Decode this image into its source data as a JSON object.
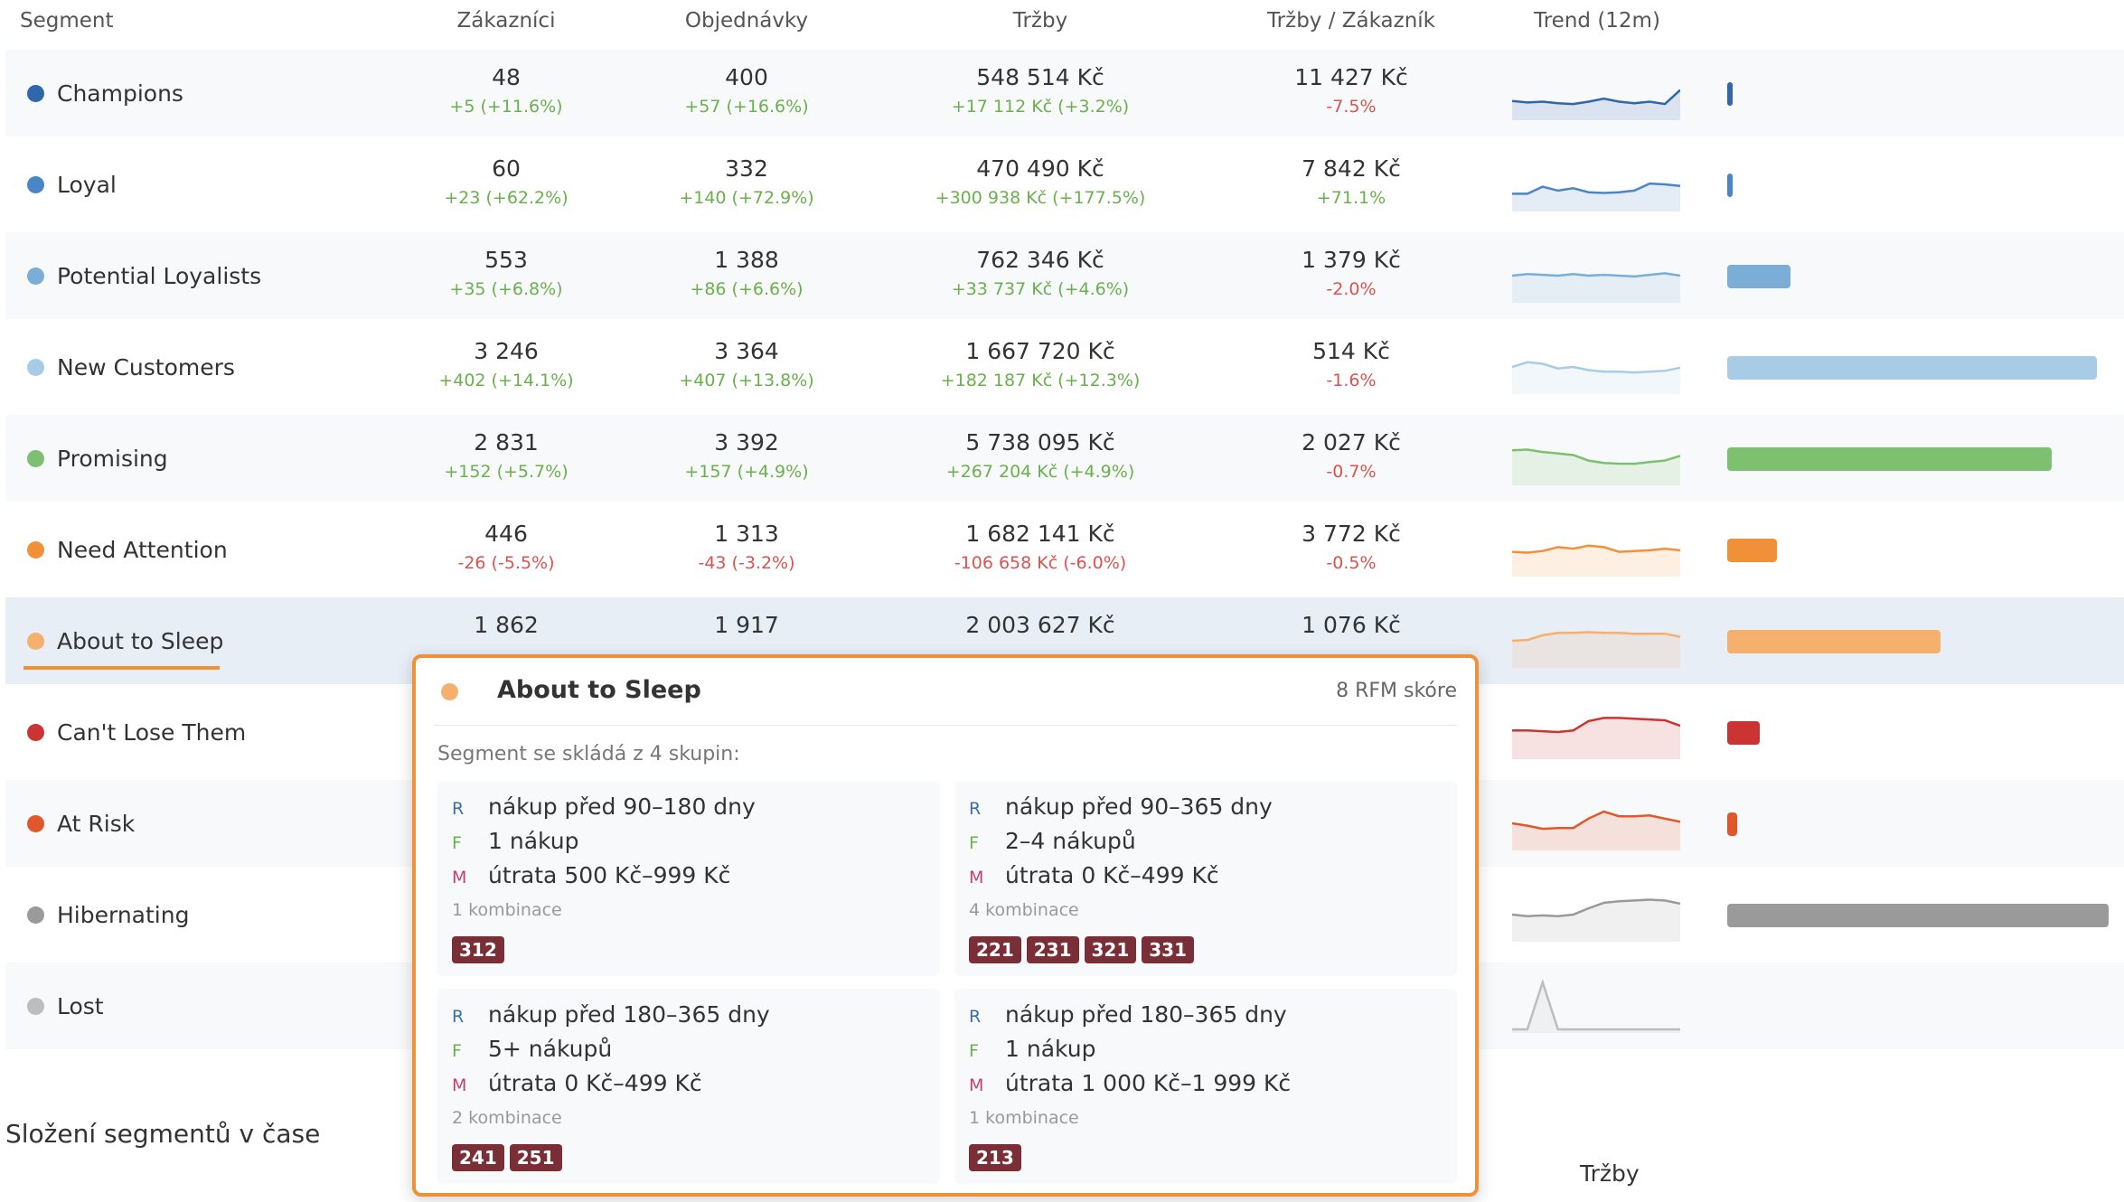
{
  "columns": [
    "Segment",
    "Zákazníci",
    "Objednávky",
    "Tržby",
    "Tržby / Zákazník",
    "Trend (12m)"
  ],
  "rows": [
    {
      "name": "Champions",
      "color": "#2f67ad",
      "customers": "48",
      "customers_delta": "+5 (+11.6%)",
      "customers_dir": "pos",
      "orders": "400",
      "orders_delta": "+57 (+16.6%)",
      "orders_dir": "pos",
      "revenue": "548 514 Kč",
      "revenue_delta": "+17 112 Kč (+3.2%)",
      "revenue_dir": "pos",
      "rpc": "11 427 Kč",
      "rpc_delta": "-7.5%",
      "rpc_dir": "neg",
      "trend": [
        20,
        18,
        19,
        17,
        16,
        19,
        23,
        19,
        17,
        19,
        16,
        34
      ],
      "share": 0.012
    },
    {
      "name": "Loyal",
      "color": "#4a86c5",
      "customers": "60",
      "customers_delta": "+23 (+62.2%)",
      "customers_dir": "pos",
      "orders": "332",
      "orders_delta": "+140 (+72.9%)",
      "orders_dir": "pos",
      "revenue": "470 490 Kč",
      "revenue_delta": "+300 938 Kč (+177.5%)",
      "revenue_dir": "pos",
      "rpc": "7 842 Kč",
      "rpc_delta": "+71.1%",
      "rpc_dir": "pos",
      "trend": [
        18,
        18,
        27,
        22,
        25,
        20,
        19,
        20,
        22,
        31,
        30,
        28
      ],
      "share": 0.014
    },
    {
      "name": "Potential Loyalists",
      "color": "#7aaed6",
      "customers": "553",
      "customers_delta": "+35 (+6.8%)",
      "customers_dir": "pos",
      "orders": "1 388",
      "orders_delta": "+86 (+6.6%)",
      "orders_dir": "pos",
      "revenue": "762 346 Kč",
      "revenue_delta": "+33 737 Kč (+4.6%)",
      "revenue_dir": "pos",
      "rpc": "1 379 Kč",
      "rpc_delta": "-2.0%",
      "rpc_dir": "neg",
      "trend": [
        30,
        32,
        31,
        30,
        32,
        30,
        31,
        30,
        29,
        31,
        33,
        30
      ],
      "share": 0.165
    },
    {
      "name": "New Customers",
      "color": "#a9cce6",
      "customers": "3 246",
      "customers_delta": "+402 (+14.1%)",
      "customers_dir": "pos",
      "orders": "3 364",
      "orders_delta": "+407 (+13.8%)",
      "orders_dir": "pos",
      "revenue": "1 667 720 Kč",
      "revenue_delta": "+182 187 Kč (+12.3%)",
      "revenue_dir": "pos",
      "rpc": "514 Kč",
      "rpc_delta": "-1.6%",
      "rpc_dir": "neg",
      "trend": [
        30,
        36,
        34,
        28,
        30,
        26,
        24,
        24,
        23,
        24,
        25,
        29
      ],
      "share": 0.97
    },
    {
      "name": "Promising",
      "color": "#7dc06f",
      "customers": "2 831",
      "customers_delta": "+152 (+5.7%)",
      "customers_dir": "pos",
      "orders": "3 392",
      "orders_delta": "+157 (+4.9%)",
      "orders_dir": "pos",
      "revenue": "5 738 095 Kč",
      "revenue_delta": "+267 204 Kč (+4.9%)",
      "revenue_dir": "pos",
      "rpc": "2 027 Kč",
      "rpc_delta": "-0.7%",
      "rpc_dir": "neg",
      "trend": [
        40,
        41,
        38,
        36,
        34,
        27,
        24,
        23,
        23,
        25,
        27,
        33
      ],
      "share": 0.85
    },
    {
      "name": "Need Attention",
      "color": "#f0913a",
      "customers": "446",
      "customers_delta": "-26 (-5.5%)",
      "customers_dir": "neg",
      "orders": "1 313",
      "orders_delta": "-43 (-3.2%)",
      "orders_dir": "neg",
      "revenue": "1 682 141 Kč",
      "revenue_delta": "-106 658 Kč (-6.0%)",
      "revenue_dir": "neg",
      "rpc": "3 772 Kč",
      "rpc_delta": "-0.5%",
      "rpc_dir": "neg",
      "trend": [
        27,
        26,
        28,
        33,
        31,
        35,
        33,
        27,
        28,
        29,
        31,
        29
      ],
      "share": 0.13
    },
    {
      "name": "About to Sleep",
      "color": "#f5b06e",
      "customers": "1 862",
      "customers_delta": "",
      "customers_dir": "pos",
      "orders": "1 917",
      "orders_delta": "",
      "orders_dir": "pos",
      "revenue": "2 003 627 Kč",
      "revenue_delta": "",
      "revenue_dir": "pos",
      "rpc": "1 076 Kč",
      "rpc_delta": "",
      "rpc_dir": "neg",
      "trend": [
        30,
        31,
        37,
        40,
        40,
        41,
        40,
        40,
        39,
        39,
        39,
        35
      ],
      "share": 0.56
    },
    {
      "name": "Can't Lose Them",
      "color": "#cc3333",
      "customers": "",
      "customers_delta": "",
      "customers_dir": "neg",
      "orders": "",
      "orders_delta": "",
      "orders_dir": "neg",
      "revenue": "",
      "revenue_delta": "",
      "revenue_dir": "neg",
      "rpc": "",
      "rpc_delta": "",
      "rpc_dir": "neg",
      "trend": [
        32,
        32,
        31,
        30,
        32,
        44,
        48,
        48,
        47,
        46,
        45,
        38
      ],
      "share": 0.085
    },
    {
      "name": "At Risk",
      "color": "#e0582a",
      "customers": "",
      "customers_delta": "",
      "customers_dir": "neg",
      "orders": "",
      "orders_delta": "",
      "orders_dir": "neg",
      "revenue": "",
      "revenue_delta": "",
      "revenue_dir": "neg",
      "rpc": "",
      "rpc_delta": "",
      "rpc_dir": "neg",
      "trend": [
        30,
        27,
        23,
        24,
        24,
        36,
        45,
        39,
        39,
        40,
        36,
        32
      ],
      "share": 0.025
    },
    {
      "name": "Hibernating",
      "color": "#9a9a9a",
      "customers": "",
      "customers_delta": "",
      "customers_dir": "neg",
      "orders": "",
      "orders_delta": "",
      "orders_dir": "neg",
      "revenue": "",
      "revenue_delta": "",
      "revenue_dir": "neg",
      "rpc": "",
      "rpc_delta": "",
      "rpc_dir": "neg",
      "trend": [
        30,
        28,
        29,
        28,
        30,
        38,
        45,
        47,
        48,
        49,
        48,
        44
      ],
      "share": 1.0
    },
    {
      "name": "Lost",
      "color": "#bdbdbd",
      "customers": "",
      "customers_delta": "",
      "customers_dir": "neg",
      "orders": "",
      "orders_delta": "",
      "orders_dir": "neg",
      "revenue": "",
      "revenue_delta": "",
      "revenue_dir": "neg",
      "rpc": "",
      "rpc_delta": "",
      "rpc_dir": "neg",
      "trend": [
        0,
        0,
        60,
        0,
        0,
        0,
        0,
        0,
        0,
        0,
        0,
        0
      ],
      "share": 0
    }
  ],
  "highlighted_segment": "About to Sleep",
  "popup": {
    "title": "About to Sleep",
    "score": "8 RFM skóre",
    "subtitle": "Segment se skládá z 4 skupin:",
    "groups": [
      {
        "r": "nákup před 90–180 dny",
        "f": "1 nákup",
        "m": "útrata 500 Kč–999 Kč",
        "komb": "1 kombinace",
        "chips": [
          "312"
        ]
      },
      {
        "r": "nákup před 90–365 dny",
        "f": "2–4 nákupů",
        "m": "útrata 0 Kč–499 Kč",
        "komb": "4 kombinace",
        "chips": [
          "221",
          "231",
          "321",
          "331"
        ]
      },
      {
        "r": "nákup před 180–365 dny",
        "f": "5+ nákupů",
        "m": "útrata 0 Kč–499 Kč",
        "komb": "2 kombinace",
        "chips": [
          "241",
          "251"
        ]
      },
      {
        "r": "nákup před 180–365 dny",
        "f": "1 nákup",
        "m": "útrata 1 000 Kč–1 999 Kč",
        "komb": "1 kombinace",
        "chips": [
          "213"
        ]
      }
    ],
    "key_r": "R",
    "key_f": "F",
    "key_m": "M"
  },
  "section_title": "Složení segmentů v čase",
  "section_chart_label": "Tržby"
}
